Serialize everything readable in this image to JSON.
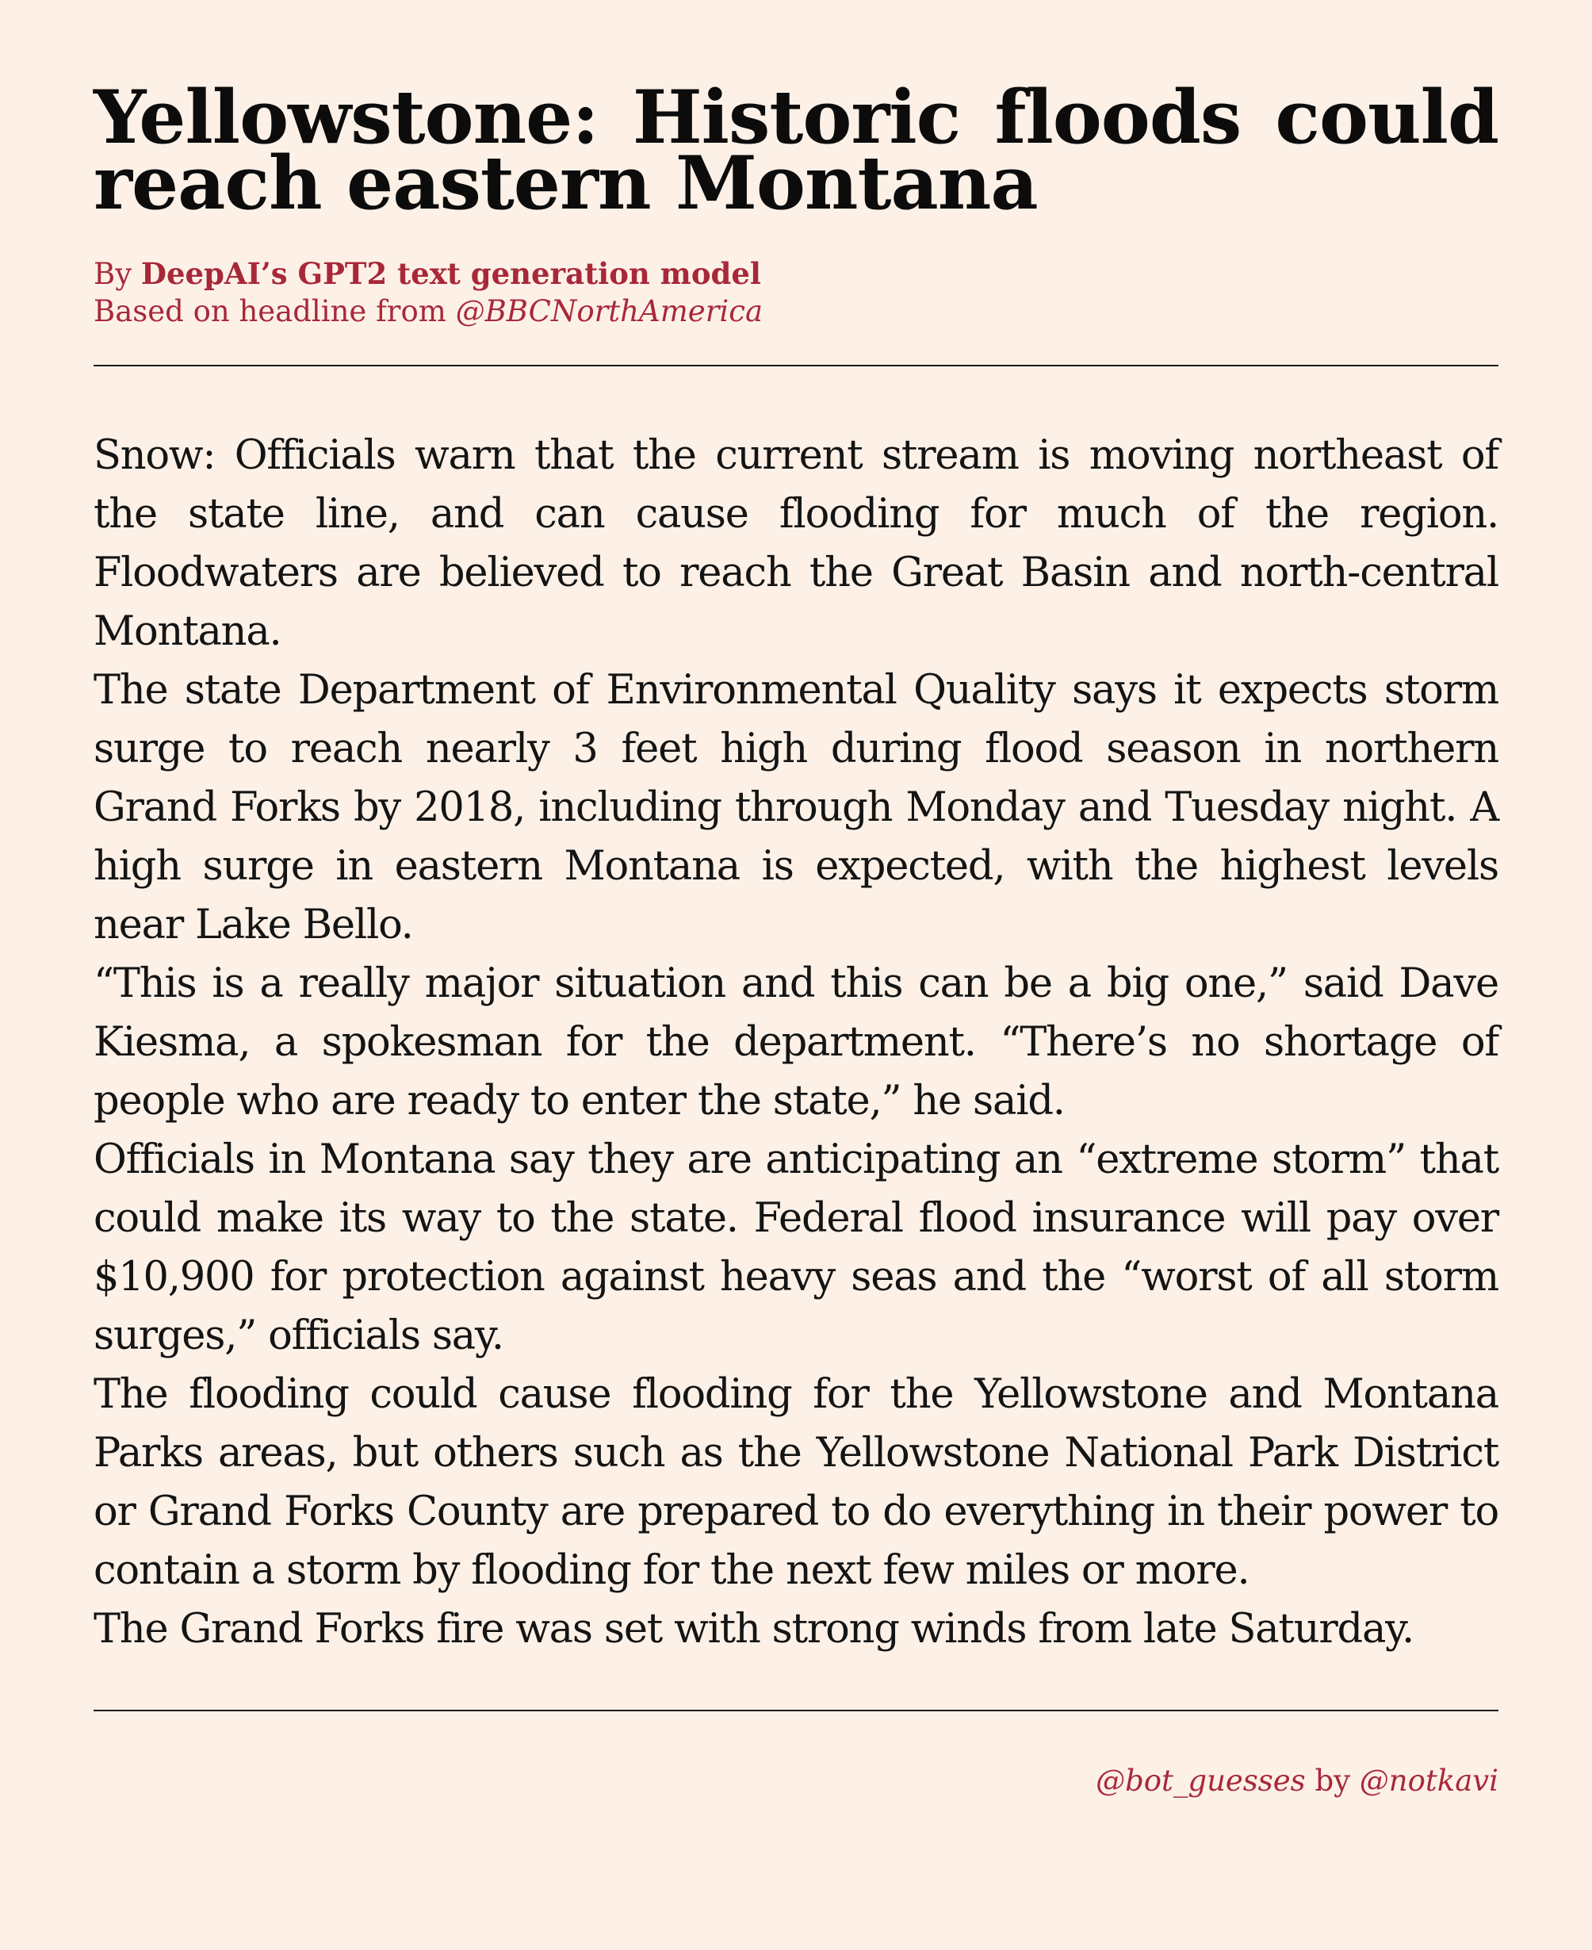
{
  "headline": "Yellowstone: Historic floods could reach eastern Montana",
  "byline": {
    "by_prefix": "By",
    "author": "DeepAI’s GPT2 text generation model",
    "based_on_prefix": "Based on headline from",
    "source_handle": "@BBCNorthAmerica"
  },
  "article": {
    "paragraphs": [
      "Snow: Officials warn that the current stream is moving northeast of the state line, and can cause flooding for much of the region. Floodwaters are believed to reach the Great Basin and north-central Montana.",
      "The state Department of Environmental Quality says it expects storm surge to reach nearly 3 feet high during flood season in northern Grand Forks by 2018, including through Monday and Tuesday night. A high surge in eastern Montana is expected, with the highest levels near Lake Bello.",
      "“This is a really major situation and this can be a big one,” said Dave Kiesma, a spokesman for the department. “There’s no shortage of people who are ready to enter the state,” he said.",
      "Officials in Montana say they are anticipating an “extreme storm” that could make its way to the state. Federal flood insurance will pay over $10,900 for protection against heavy seas and the “worst of all storm surges,” officials say.",
      "The flooding could cause flooding for the Yellowstone and Montana Parks areas, but others such as the Yellowstone National Park District or Grand Forks County are prepared to do everything in their power to contain a storm by flooding for the next few miles or more.",
      "The Grand Forks fire was set with strong winds from late Saturday."
    ]
  },
  "footer": {
    "bot_handle": "@bot_guesses",
    "by_word": "by",
    "author_handle": "@notkavi"
  },
  "colors": {
    "background": "#fdf1e7",
    "text": "#141414",
    "accent": "#a8283a"
  }
}
